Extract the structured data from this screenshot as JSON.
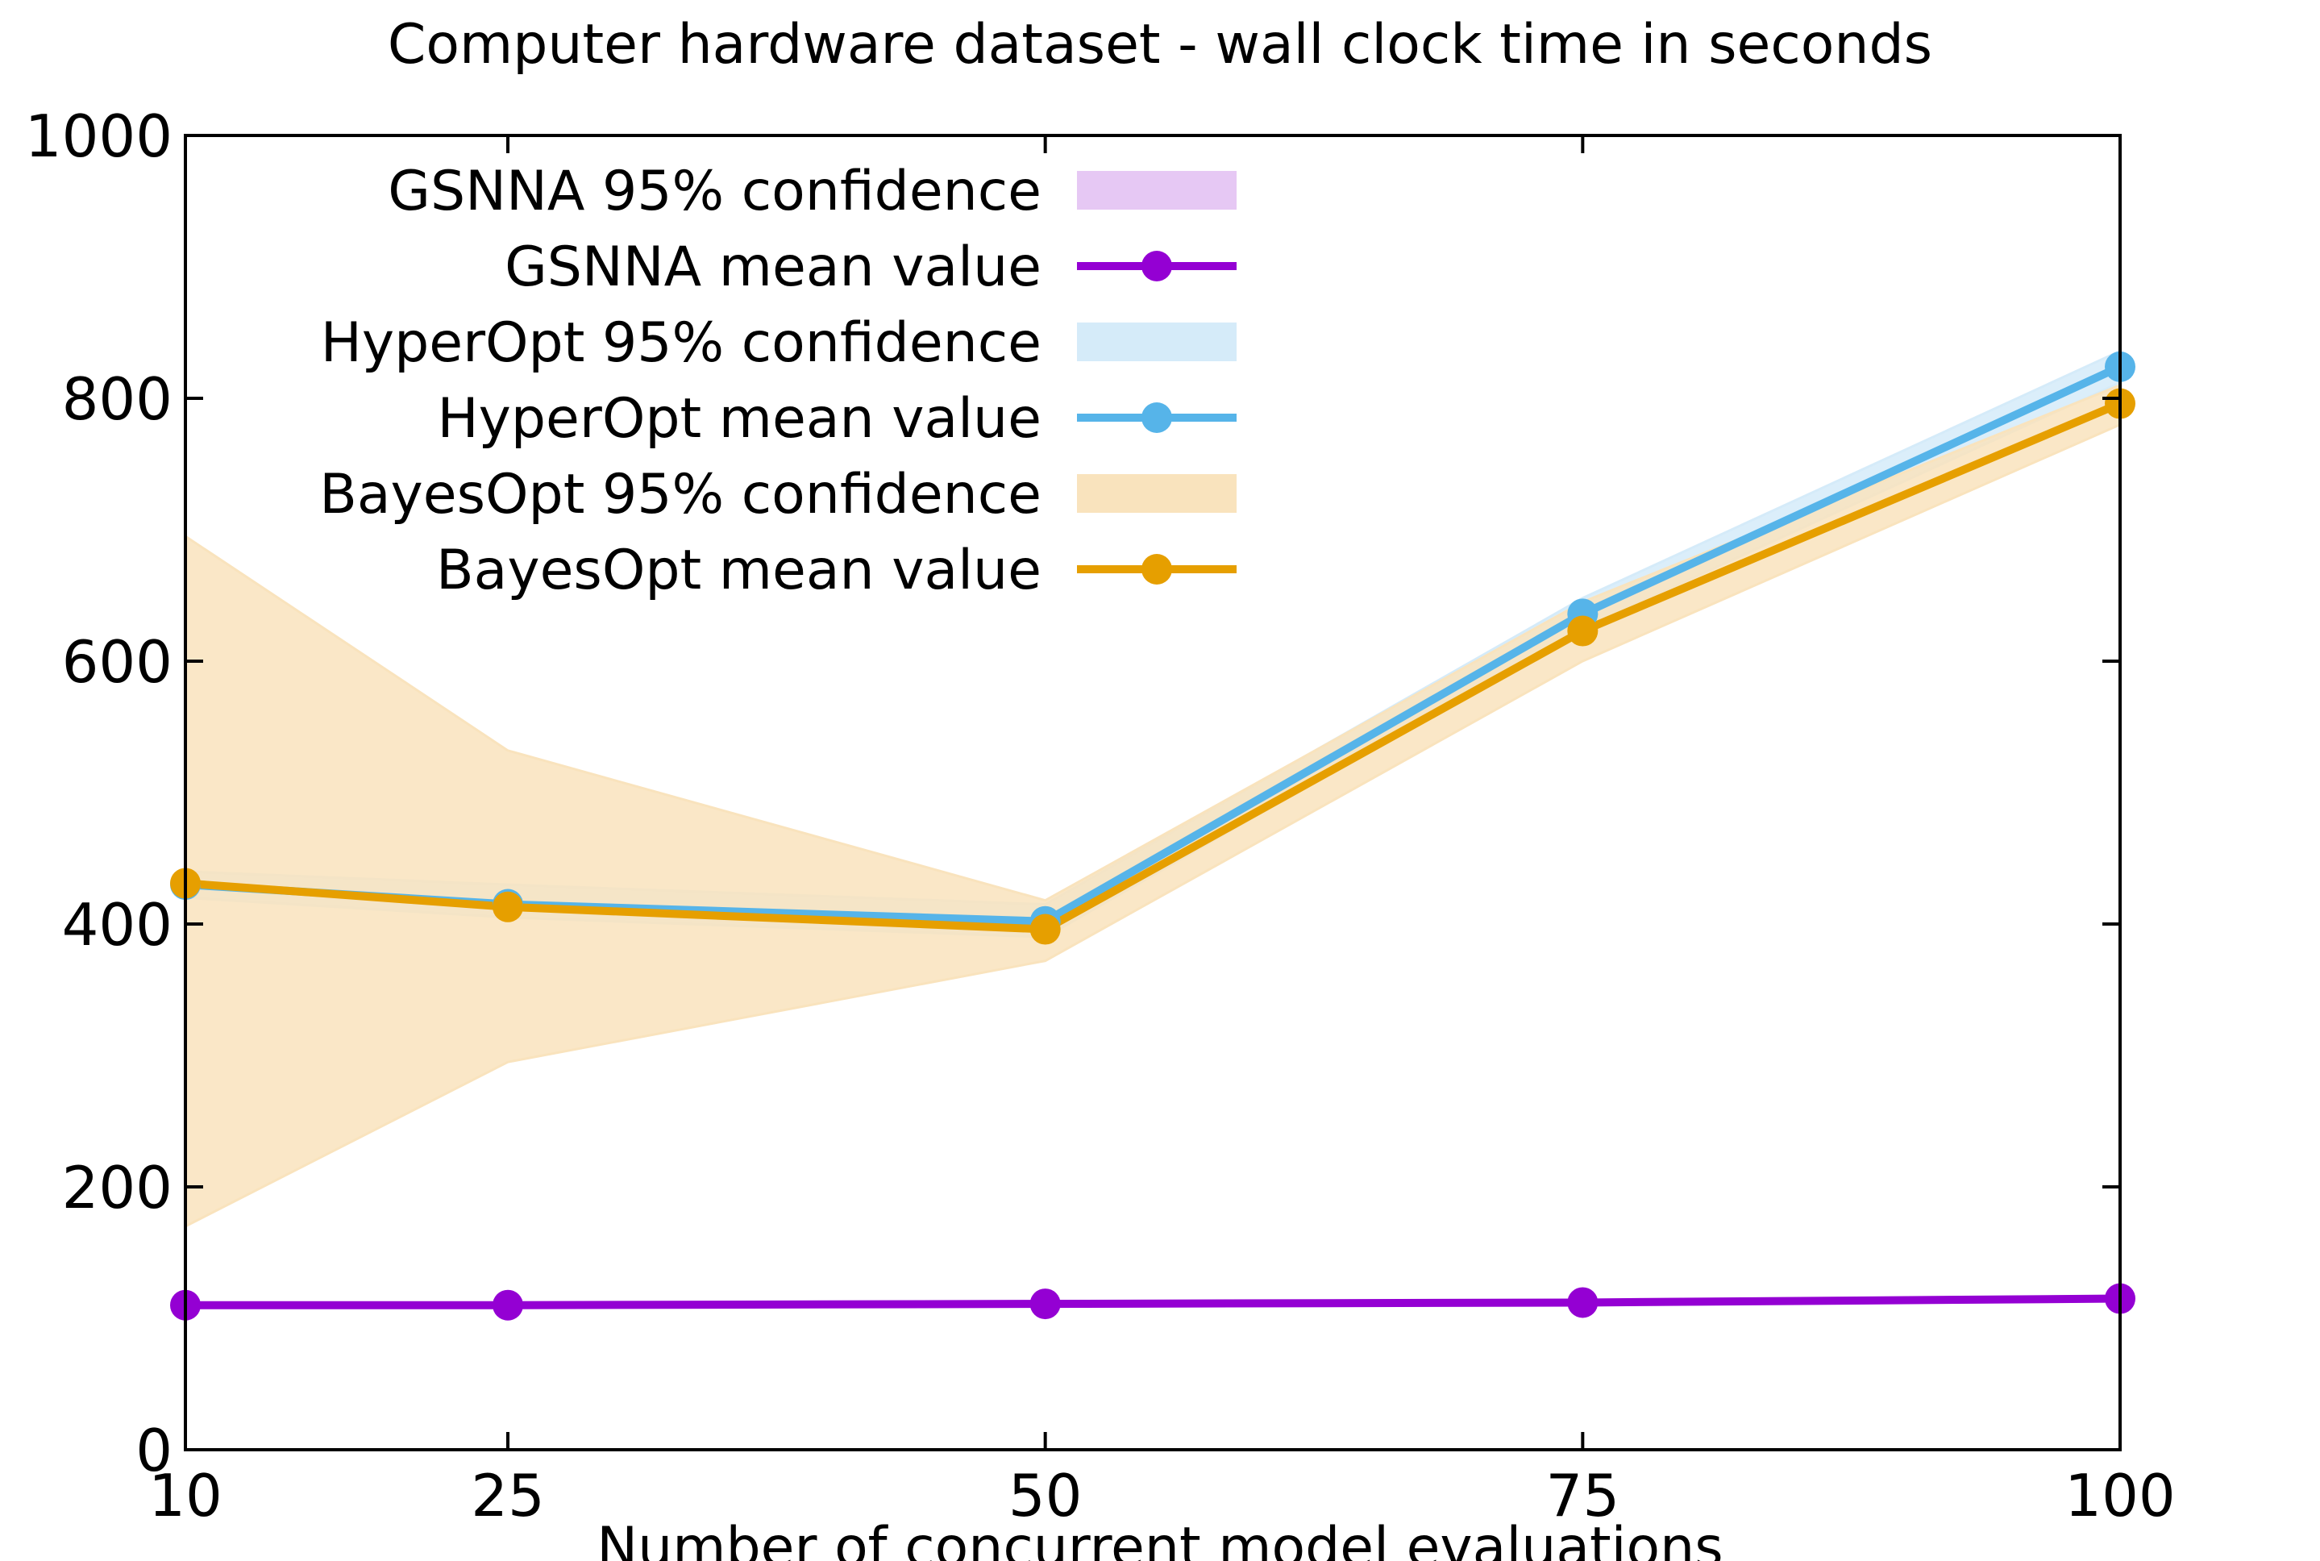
{
  "chart_data": {
    "type": "line",
    "title": "Computer hardware dataset - wall clock time in seconds",
    "xlabel": "Number of concurrent model evaluations",
    "ylabel": "",
    "x": [
      10,
      25,
      50,
      75,
      100
    ],
    "xlim": [
      10,
      100
    ],
    "ylim": [
      0,
      1000
    ],
    "x_ticks": [
      10,
      25,
      50,
      75,
      100
    ],
    "y_ticks": [
      0,
      200,
      400,
      600,
      800,
      1000
    ],
    "grid": false,
    "legend_position": "top-left",
    "series": [
      {
        "key": "gsnna",
        "name": "GSNNA mean value",
        "band_name": "GSNNA 95% confidence",
        "color": "#9400d3",
        "band_color": "#e6c8f4",
        "values": [
          110,
          110,
          111,
          112,
          115
        ],
        "lower": [
          108,
          108,
          109,
          110,
          113
        ],
        "upper": [
          112,
          112,
          113,
          114,
          117
        ]
      },
      {
        "key": "hyperopt",
        "name": "HyperOpt mean value",
        "band_name": "HyperOpt 95% confidence",
        "color": "#56b4e9",
        "band_color": "#d5ebf9",
        "values": [
          430,
          415,
          402,
          636,
          824
        ],
        "lower": [
          420,
          405,
          390,
          625,
          812
        ],
        "upper": [
          440,
          430,
          415,
          648,
          836
        ]
      },
      {
        "key": "bayesopt",
        "name": "BayesOpt mean value",
        "band_name": "BayesOpt 95% confidence",
        "color": "#e69f00",
        "band_color": "#f9e3bd",
        "values": [
          431,
          413,
          396,
          623,
          796
        ],
        "lower": [
          170,
          295,
          372,
          600,
          780
        ],
        "upper": [
          695,
          532,
          418,
          645,
          810
        ]
      }
    ]
  }
}
